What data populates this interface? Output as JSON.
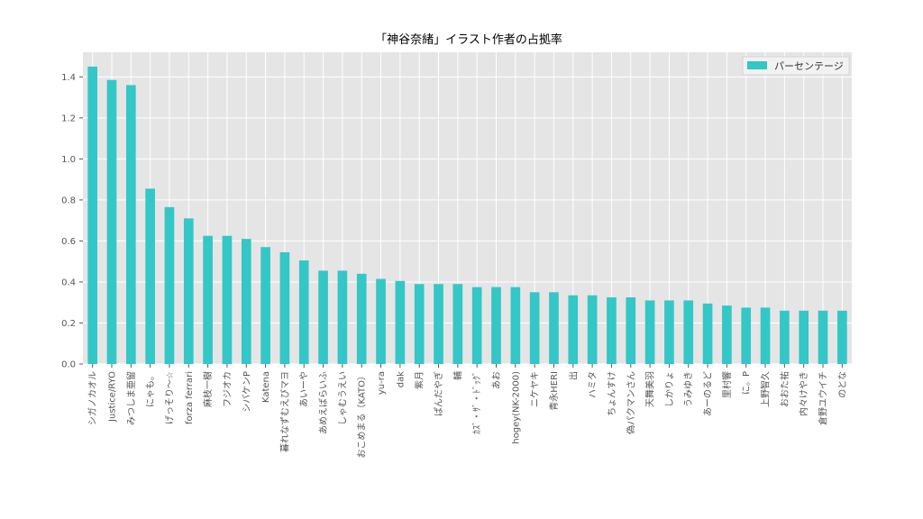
{
  "chart_data": {
    "type": "bar",
    "title": "「神谷奈緒」イラスト作者の占拠率",
    "xlabel": "",
    "ylabel": "",
    "ylim": [
      0,
      1.52
    ],
    "yticks": [
      "0.0",
      "0.2",
      "0.4",
      "0.6",
      "0.8",
      "1.0",
      "1.2",
      "1.4"
    ],
    "grid": true,
    "legend_position": "top-right",
    "colors": {
      "bar": "#33c7c7",
      "plot_bg": "#e5e5e5",
      "grid": "#ffffff"
    },
    "categories": [
      "シガノカオル",
      "Justice/RYO",
      "みつしま亜留",
      "にゃも。",
      "げっそり〜☆",
      "forza ferrari",
      "麻枝一樹",
      "フジオカ",
      "シバケンP",
      "Katena",
      "暮れなずむえびマヨ",
      "あいーや",
      "あめえばらいふ",
      "しゃむうえい",
      "おこめまる（KATO）",
      "yu-ra",
      "dak",
      "紫月",
      "ぱんだやぎ",
      "輔",
      "ｶｽﾞ・ｻﾞ・ﾄﾞｯｸﾞ",
      "あお",
      "hogey(NK-2000)",
      "ニケヤキ",
      "青永HERI",
      "出",
      "ハミタ",
      "ちょんすけ",
      "偽パクマンさん",
      "天舞美羽",
      "しかりょ",
      "うみゆき",
      "あーのるど",
      "里村響",
      "に。P",
      "上野智久",
      "おおた祐",
      "内々けやき",
      "倉野ユウイチ",
      "のとな"
    ],
    "series": [
      {
        "name": "パーセンテージ",
        "values": [
          1.45,
          1.385,
          1.36,
          0.855,
          0.765,
          0.71,
          0.625,
          0.625,
          0.61,
          0.57,
          0.545,
          0.505,
          0.455,
          0.455,
          0.44,
          0.415,
          0.405,
          0.39,
          0.39,
          0.39,
          0.375,
          0.375,
          0.375,
          0.35,
          0.35,
          0.335,
          0.335,
          0.325,
          0.325,
          0.31,
          0.31,
          0.31,
          0.295,
          0.285,
          0.275,
          0.275,
          0.26,
          0.26,
          0.26,
          0.26
        ]
      }
    ]
  }
}
